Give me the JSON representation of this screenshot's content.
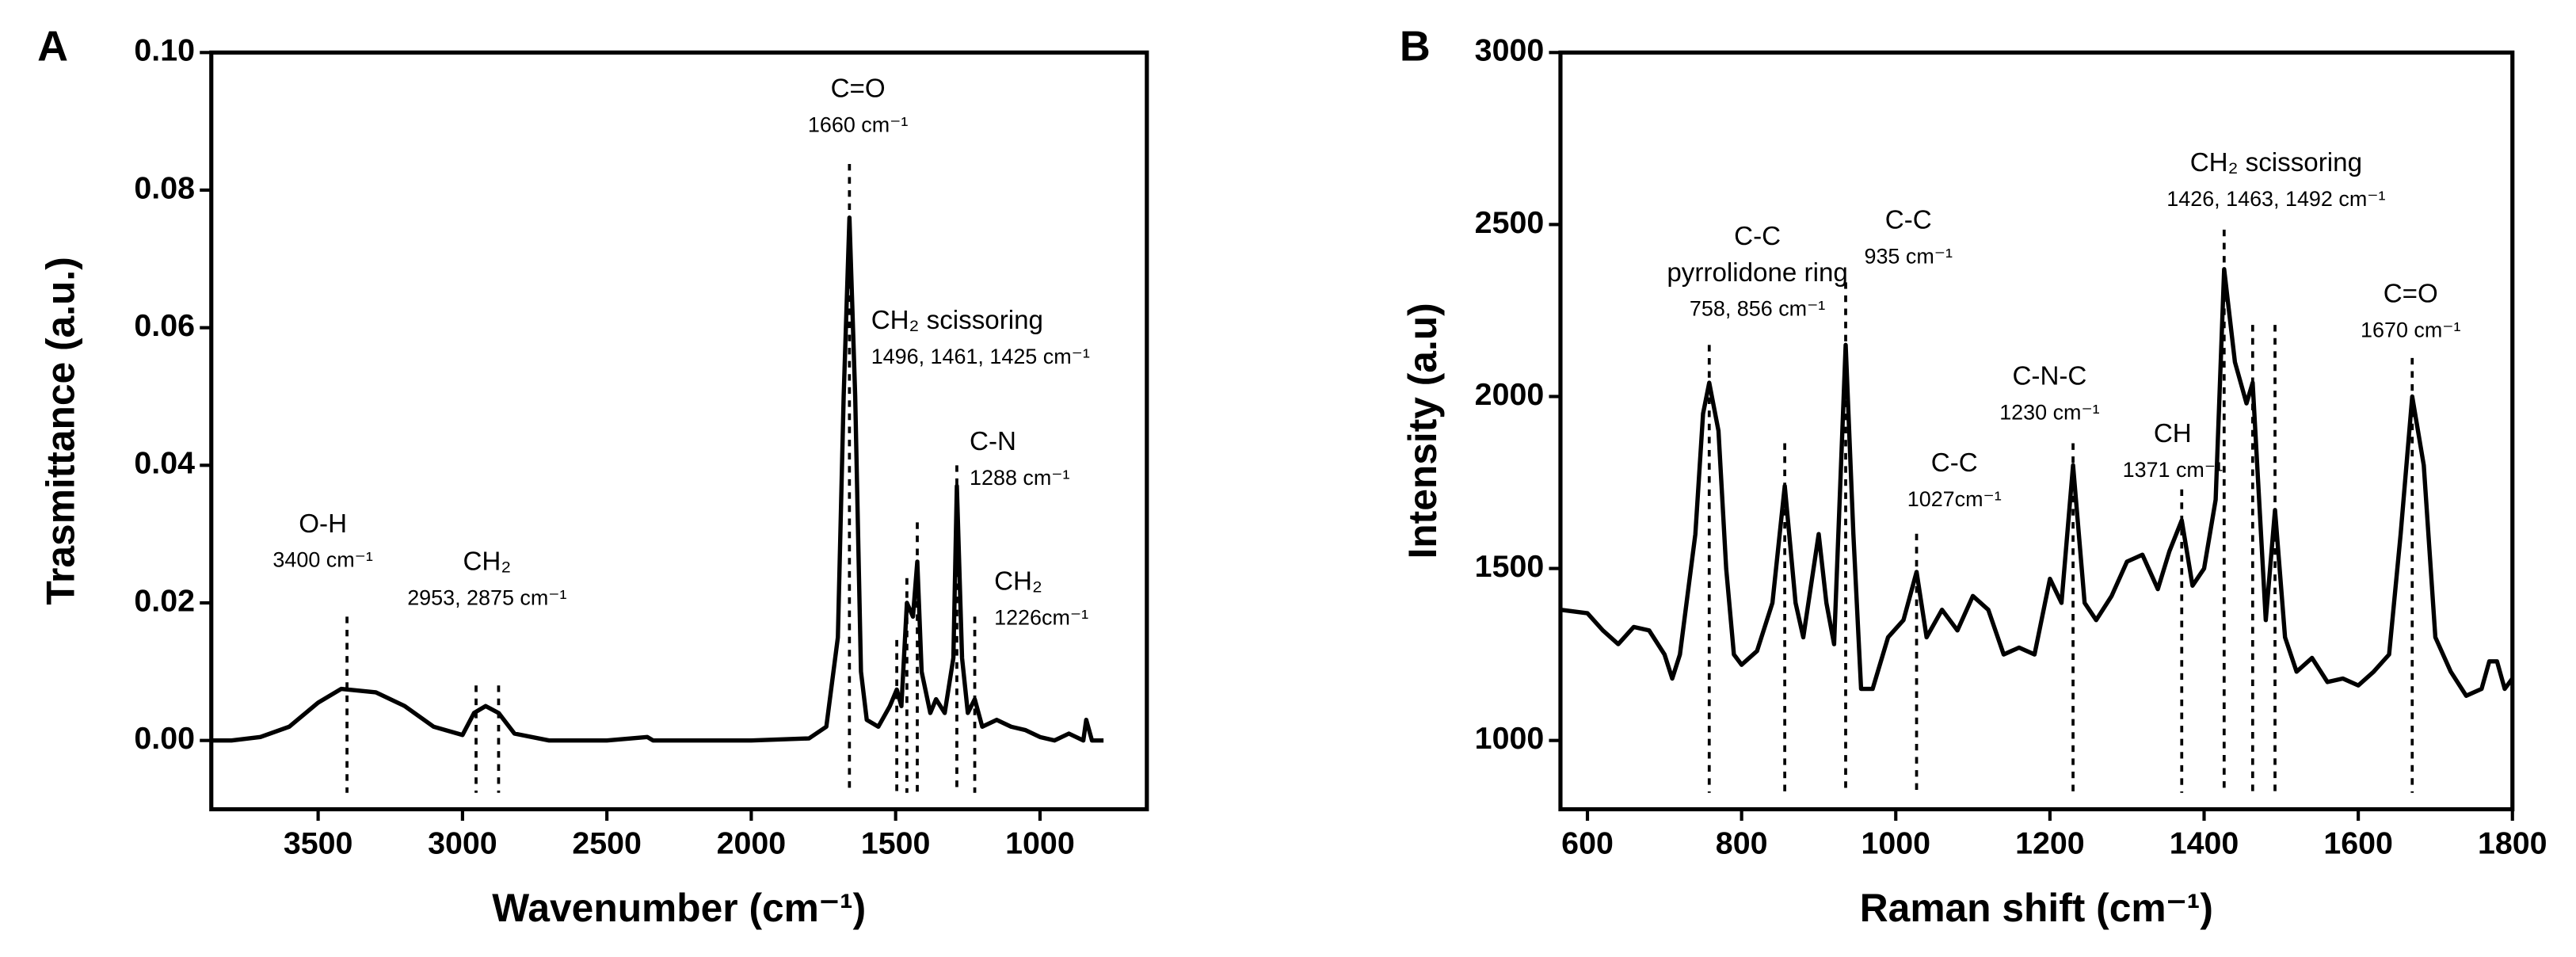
{
  "chart_data": [
    {
      "type": "line",
      "panel": "A",
      "xlabel": "Wavenumber (cm⁻¹)",
      "ylabel": "Trasmittance (a.u.)",
      "xlim": [
        3870,
        630
      ],
      "ylim": [
        -0.01,
        0.1
      ],
      "xticks": [
        3500,
        3000,
        2500,
        2000,
        1500,
        1000
      ],
      "yticks": [
        {
          "value": 0,
          "label": "0.00"
        },
        {
          "value": 0.02,
          "label": "0.02"
        },
        {
          "value": 0.04,
          "label": "0.04"
        },
        {
          "value": 0.06,
          "label": "0.06"
        },
        {
          "value": 0.08,
          "label": "0.08"
        },
        {
          "value": 0.1,
          "label": "0.10"
        }
      ],
      "x": [
        3870,
        3800,
        3700,
        3600,
        3500,
        3420,
        3300,
        3200,
        3100,
        3000,
        2960,
        2920,
        2875,
        2820,
        2700,
        2500,
        2360,
        2340,
        2000,
        1800,
        1740,
        1700,
        1680,
        1660,
        1640,
        1620,
        1600,
        1560,
        1520,
        1496,
        1480,
        1461,
        1440,
        1425,
        1410,
        1380,
        1360,
        1330,
        1300,
        1288,
        1270,
        1250,
        1226,
        1200,
        1150,
        1100,
        1050,
        1000,
        950,
        900,
        850,
        840,
        820,
        780
      ],
      "values": [
        0,
        0,
        0.0005,
        0.002,
        0.0055,
        0.0075,
        0.007,
        0.005,
        0.002,
        0.0008,
        0.004,
        0.005,
        0.004,
        0.001,
        0,
        0,
        0.0005,
        0,
        0,
        0.0003,
        0.002,
        0.015,
        0.05,
        0.076,
        0.05,
        0.01,
        0.003,
        0.002,
        0.005,
        0.0074,
        0.005,
        0.02,
        0.018,
        0.026,
        0.01,
        0.004,
        0.006,
        0.004,
        0.012,
        0.037,
        0.012,
        0.004,
        0.006,
        0.002,
        0.003,
        0.002,
        0.0015,
        0.0005,
        0,
        0.001,
        0,
        0.003,
        0,
        0
      ],
      "color": "#000000",
      "peaks": [
        {
          "x": 3400,
          "y": 0.018
        },
        {
          "x": 2953,
          "y": 0.008
        },
        {
          "x": 2875,
          "y": 0.008
        },
        {
          "x": 1660,
          "y": 0.0838
        },
        {
          "x": 1496,
          "y": 0.0146
        },
        {
          "x": 1461,
          "y": 0.0236
        },
        {
          "x": 1425,
          "y": 0.0317
        },
        {
          "x": 1288,
          "y": 0.04
        },
        {
          "x": 1226,
          "y": 0.018
        }
      ],
      "annotations": [
        {
          "lines": [
            "O-H",
            "3400 cm⁻¹"
          ]
        },
        {
          "lines": [
            "CH₂",
            "2953, 2875 cm⁻¹"
          ]
        },
        {
          "lines": [
            "C=O",
            "1660 cm⁻¹"
          ]
        },
        {
          "lines": [
            "CH₂ scissoring",
            "1496, 1461, 1425 cm⁻¹"
          ]
        },
        {
          "lines": [
            "C-N",
            "1288 cm⁻¹"
          ]
        },
        {
          "lines": [
            "CH₂",
            "1226cm⁻¹"
          ]
        }
      ]
    },
    {
      "type": "line",
      "panel": "B",
      "xlabel": "Raman shift (cm⁻¹)",
      "ylabel": "Intensity (a.u)",
      "xlim": [
        565,
        1800
      ],
      "ylim": [
        800,
        3000
      ],
      "xticks": [
        600,
        800,
        1000,
        1200,
        1400,
        1600,
        1800
      ],
      "yticks": [
        1000,
        1500,
        2000,
        2500,
        3000
      ],
      "x": [
        565,
        600,
        620,
        640,
        660,
        680,
        700,
        710,
        720,
        740,
        750,
        758,
        770,
        780,
        790,
        800,
        820,
        840,
        856,
        870,
        880,
        890,
        900,
        910,
        920,
        935,
        945,
        955,
        970,
        990,
        1010,
        1027,
        1040,
        1060,
        1080,
        1100,
        1120,
        1140,
        1160,
        1180,
        1200,
        1215,
        1230,
        1245,
        1260,
        1280,
        1300,
        1320,
        1340,
        1355,
        1371,
        1385,
        1400,
        1415,
        1426,
        1440,
        1455,
        1463,
        1480,
        1492,
        1505,
        1520,
        1540,
        1560,
        1580,
        1600,
        1620,
        1640,
        1655,
        1670,
        1685,
        1700,
        1720,
        1740,
        1760,
        1770,
        1780,
        1790,
        1800
      ],
      "values": [
        1380,
        1370,
        1320,
        1280,
        1330,
        1320,
        1250,
        1180,
        1250,
        1600,
        1950,
        2040,
        1900,
        1500,
        1250,
        1220,
        1260,
        1400,
        1740,
        1400,
        1300,
        1450,
        1600,
        1400,
        1280,
        2150,
        1600,
        1150,
        1150,
        1300,
        1350,
        1490,
        1300,
        1380,
        1320,
        1420,
        1380,
        1250,
        1270,
        1250,
        1470,
        1400,
        1800,
        1400,
        1350,
        1420,
        1520,
        1540,
        1440,
        1550,
        1640,
        1450,
        1500,
        1700,
        2370,
        2100,
        1980,
        2040,
        1350,
        1670,
        1300,
        1200,
        1240,
        1170,
        1180,
        1160,
        1200,
        1250,
        1600,
        2000,
        1800,
        1300,
        1200,
        1130,
        1150,
        1230,
        1230,
        1150,
        1180
      ],
      "color": "#000000",
      "peaks": [
        {
          "x": 758,
          "y": 2150
        },
        {
          "x": 856,
          "y": 1864
        },
        {
          "x": 935,
          "y": 2332
        },
        {
          "x": 1027,
          "y": 1601
        },
        {
          "x": 1230,
          "y": 1864
        },
        {
          "x": 1371,
          "y": 1730
        },
        {
          "x": 1426,
          "y": 2485
        },
        {
          "x": 1463,
          "y": 2208
        },
        {
          "x": 1492,
          "y": 2208
        },
        {
          "x": 1670,
          "y": 2112
        }
      ],
      "annotations": [
        {
          "lines": [
            "C-C",
            "pyrrolidone ring",
            "758, 856 cm⁻¹"
          ]
        },
        {
          "lines": [
            "C-C",
            "935 cm⁻¹"
          ]
        },
        {
          "lines": [
            "C-C",
            "1027cm⁻¹"
          ]
        },
        {
          "lines": [
            "C-N-C",
            "1230 cm⁻¹"
          ]
        },
        {
          "lines": [
            "CH",
            "1371 cm⁻¹"
          ]
        },
        {
          "lines": [
            "CH₂ scissoring",
            "1426, 1463, 1492 cm⁻¹"
          ]
        },
        {
          "lines": [
            "C=O",
            "1670 cm⁻¹"
          ]
        }
      ]
    }
  ]
}
